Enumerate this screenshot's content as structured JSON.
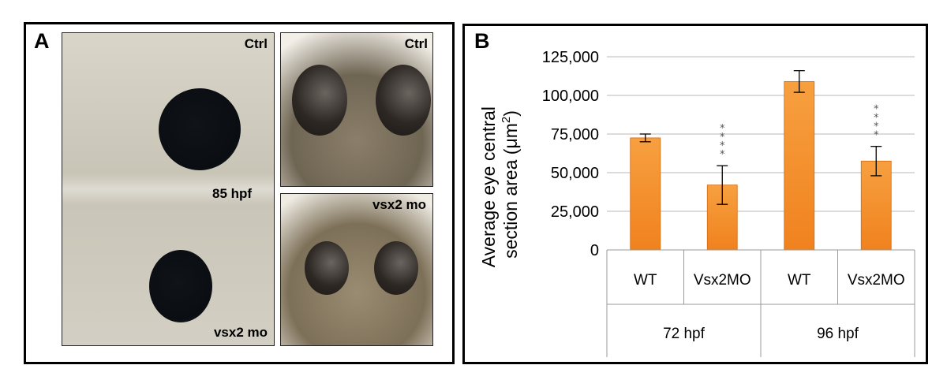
{
  "panel_a": {
    "letter": "A",
    "lateral_top_label": "Ctrl",
    "lateral_stage_label": "85 hpf",
    "lateral_bottom_label": "vsx2 mo",
    "dorsal_top_label": "Ctrl",
    "dorsal_bottom_label": "vsx2 mo"
  },
  "panel_b": {
    "letter": "B"
  },
  "chart_data": {
    "type": "bar",
    "categories": [
      "WT",
      "Vsx2MO",
      "WT",
      "Vsx2MO"
    ],
    "groups": [
      {
        "label": "72 hpf",
        "categories": [
          "WT",
          "Vsx2MO"
        ]
      },
      {
        "label": "96 hpf",
        "categories": [
          "WT",
          "Vsx2MO"
        ]
      }
    ],
    "values": [
      72500,
      42000,
      109000,
      57500
    ],
    "error": [
      2500,
      12500,
      7000,
      9500
    ],
    "significance": [
      "",
      "****",
      "",
      "****"
    ],
    "ylabel_line1": "Average eye central",
    "ylabel_line2_prefix": "section area (",
    "ylabel_mu": "μ",
    "ylabel_unit": "m",
    "ylabel_sup": "2",
    "ylabel_suffix": ")",
    "ylim": [
      0,
      125000
    ],
    "yticks": [
      0,
      25000,
      50000,
      75000,
      100000,
      125000
    ],
    "ytick_labels": [
      "0",
      "25,000",
      "50,000",
      "75,000",
      "100,000",
      "125,000"
    ],
    "grid": true,
    "bar_color": "#f0821e"
  }
}
